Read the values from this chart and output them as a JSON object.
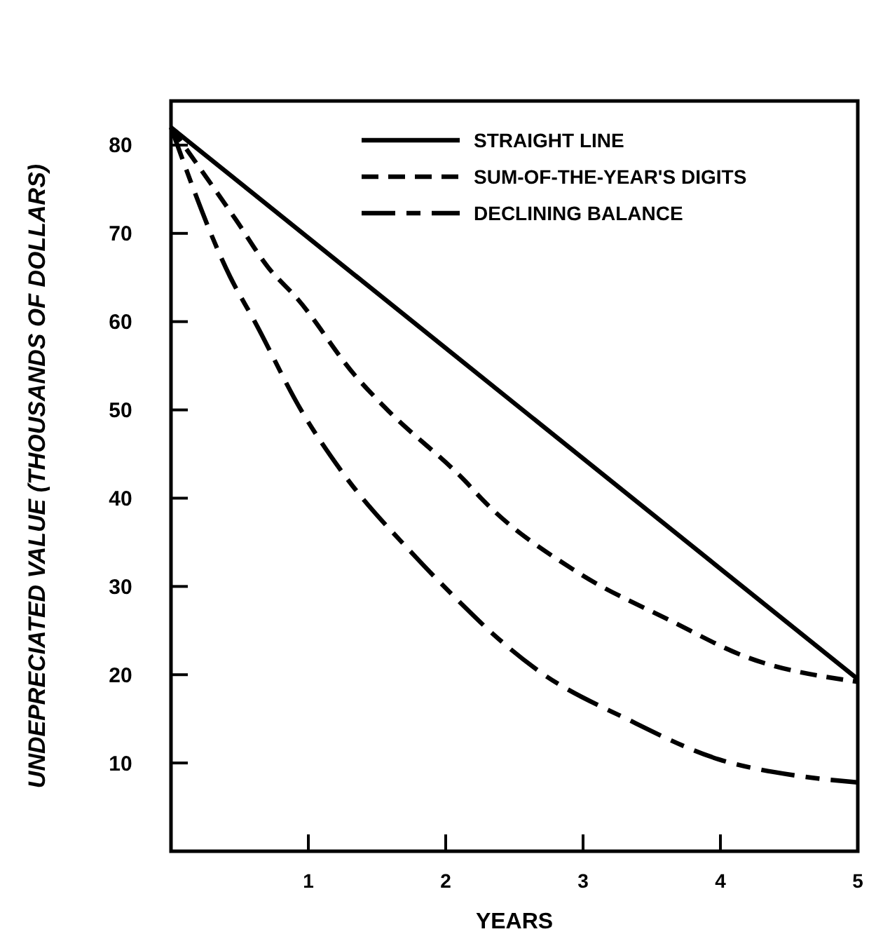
{
  "chart_data": {
    "type": "line",
    "xlabel": "YEARS",
    "ylabel": "UNDEPRECIATED VALUE (THOUSANDS OF DOLLARS)",
    "xlim": [
      0,
      5
    ],
    "ylim": [
      0,
      85
    ],
    "xticks": [
      1,
      2,
      3,
      4,
      5
    ],
    "yticks": [
      10,
      20,
      30,
      40,
      50,
      60,
      70,
      80
    ],
    "grid": false,
    "legend": "top right",
    "marker": "none",
    "series": [
      {
        "name": "STRAIGHT LINE",
        "color": "#000000",
        "line_style": "solid",
        "x": [
          0,
          5
        ],
        "values": [
          82,
          19.5
        ]
      },
      {
        "name": "SUM-OF-THE-YEAR'S DIGITS",
        "color": "#000000",
        "line_style": "dashed",
        "x": [
          0,
          0.47,
          0.71,
          0.92,
          1.34,
          1.55,
          2.15,
          2.27,
          2.95,
          3.64,
          4.19,
          5
        ],
        "values": [
          82,
          71.6,
          66.1,
          62.6,
          53.9,
          50.4,
          41.8,
          39.8,
          31.7,
          26.1,
          22,
          19.2
        ]
      },
      {
        "name": "DECLINING BALANCE",
        "color": "#000000",
        "line_style": "dashdot",
        "x": [
          0,
          0.43,
          0.61,
          0.95,
          1.23,
          1.79,
          2.11,
          2.31,
          2.67,
          3.33,
          3.99,
          4.54,
          5
        ],
        "values": [
          82,
          65.1,
          60,
          49.9,
          43.3,
          33.2,
          28.1,
          25.1,
          20.5,
          14.9,
          10.4,
          8.6,
          7.8
        ]
      }
    ]
  }
}
